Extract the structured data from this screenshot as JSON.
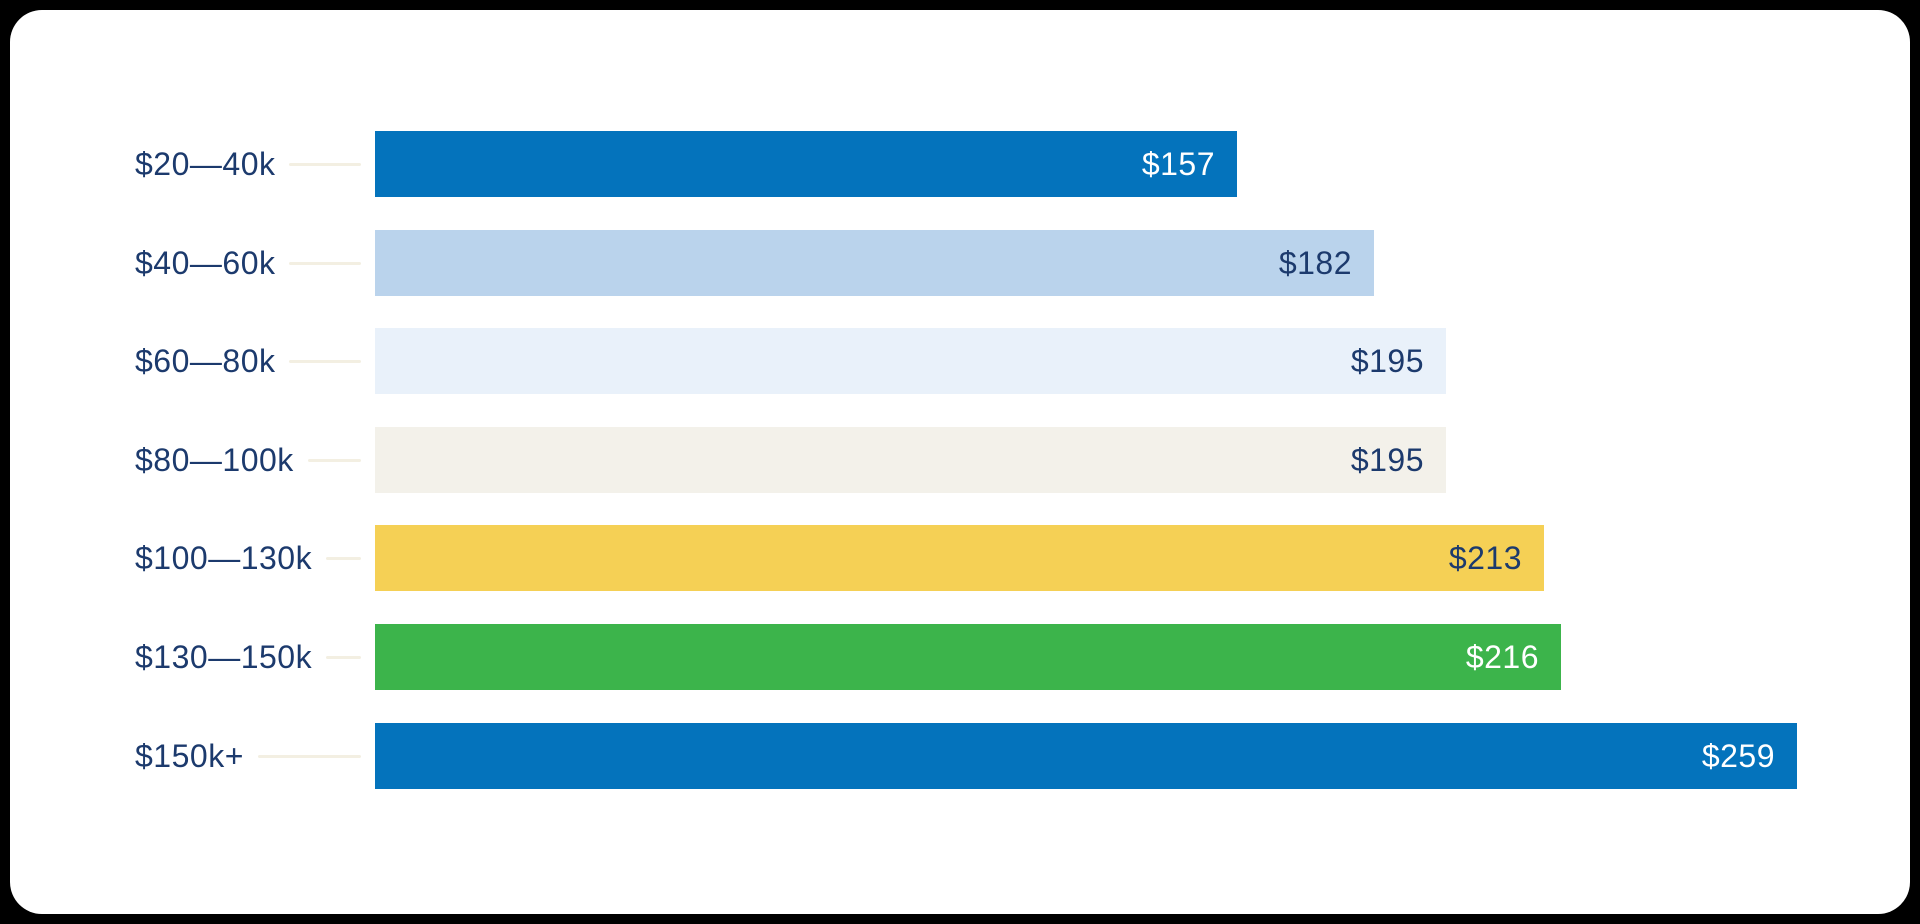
{
  "chart_data": {
    "type": "bar",
    "orientation": "horizontal",
    "title": "",
    "xlabel": "",
    "ylabel": "",
    "grid": false,
    "legend": false,
    "xlim": [
      0,
      259
    ],
    "categories": [
      "$20—40k",
      "$40—60k",
      "$60—80k",
      "$80—100k",
      "$100—130k",
      "$130—150k",
      "$150k+"
    ],
    "values": [
      157,
      182,
      195,
      195,
      213,
      216,
      259
    ],
    "value_labels": [
      "$157",
      "$182",
      "$195",
      "$195",
      "$213",
      "$216",
      "$259"
    ],
    "bar_colors": [
      "#0473BC",
      "#BAD3EC",
      "#E9F1FA",
      "#F3F1EA",
      "#F5D055",
      "#3CB44B",
      "#0473BC"
    ],
    "value_text_colors": [
      "#FFFFFF",
      "#1C3A6D",
      "#1C3A6D",
      "#1C3A6D",
      "#1C3A6D",
      "#FFFFFF",
      "#FFFFFF"
    ]
  },
  "colors": {
    "page_background": "#000000",
    "card_background": "#FFFFFF",
    "category_label_text": "#1C3A6D",
    "leader_line": "#F3EFE2"
  }
}
